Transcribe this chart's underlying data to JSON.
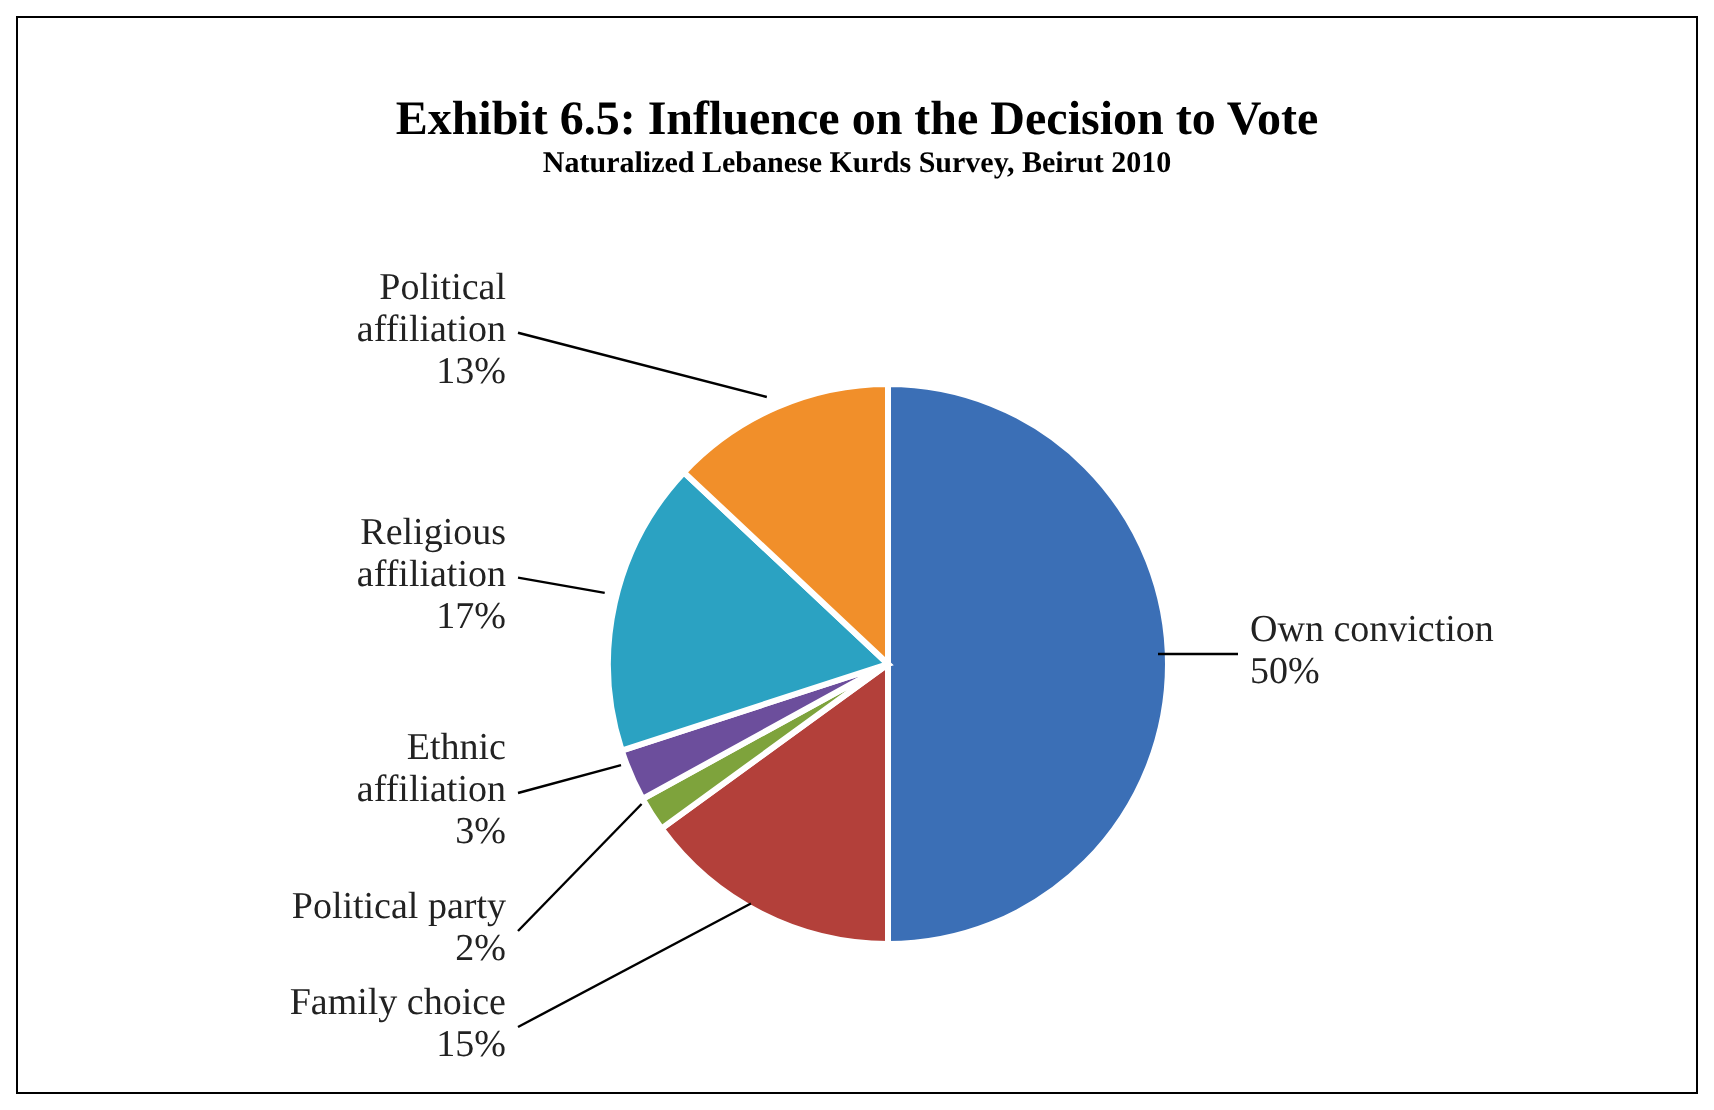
{
  "chart_data": {
    "type": "pie",
    "title": "Exhibit 6.5: Influence on  the Decision to Vote",
    "subtitle": "Naturalized Lebanese Kurds Survey, Beirut 2010",
    "categories": [
      "Own conviction",
      "Family choice",
      "Political party",
      "Ethnic affiliation",
      "Religious affiliation",
      "Political affiliation"
    ],
    "values": [
      50,
      15,
      2,
      3,
      17,
      13
    ],
    "colors": [
      "#3b6fb6",
      "#b3403a",
      "#7ea33c",
      "#6c4e9c",
      "#2ba2c2",
      "#f18f2a"
    ],
    "value_labels": [
      "50%",
      "15%",
      "2%",
      "3%",
      "17%",
      "13%"
    ],
    "legend": false
  }
}
